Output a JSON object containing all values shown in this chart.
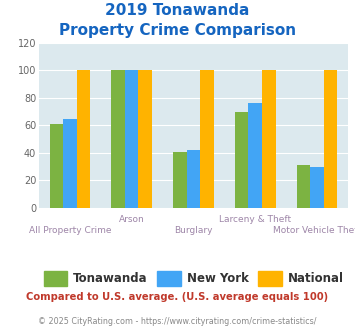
{
  "title_line1": "2019 Tonawanda",
  "title_line2": "Property Crime Comparison",
  "categories": [
    "All Property Crime",
    "Arson",
    "Burglary",
    "Larceny & Theft",
    "Motor Vehicle Theft"
  ],
  "tonawanda": [
    61,
    100,
    41,
    70,
    31
  ],
  "new_york": [
    65,
    100,
    42,
    76,
    30
  ],
  "national": [
    100,
    100,
    100,
    100,
    100
  ],
  "color_tonawanda": "#7cb342",
  "color_new_york": "#42a5f5",
  "color_national": "#ffb300",
  "color_bg": "#dce9ee",
  "ylim": [
    0,
    120
  ],
  "yticks": [
    0,
    20,
    40,
    60,
    80,
    100,
    120
  ],
  "xlabel_color": "#9e86a8",
  "title_color": "#1565c0",
  "legend_labels": [
    "Tonawanda",
    "New York",
    "National"
  ],
  "footnote1": "Compared to U.S. average. (U.S. average equals 100)",
  "footnote2": "© 2025 CityRating.com - https://www.cityrating.com/crime-statistics/",
  "footnote1_color": "#c0392b",
  "footnote2_color": "#888888",
  "bar_width": 0.22
}
